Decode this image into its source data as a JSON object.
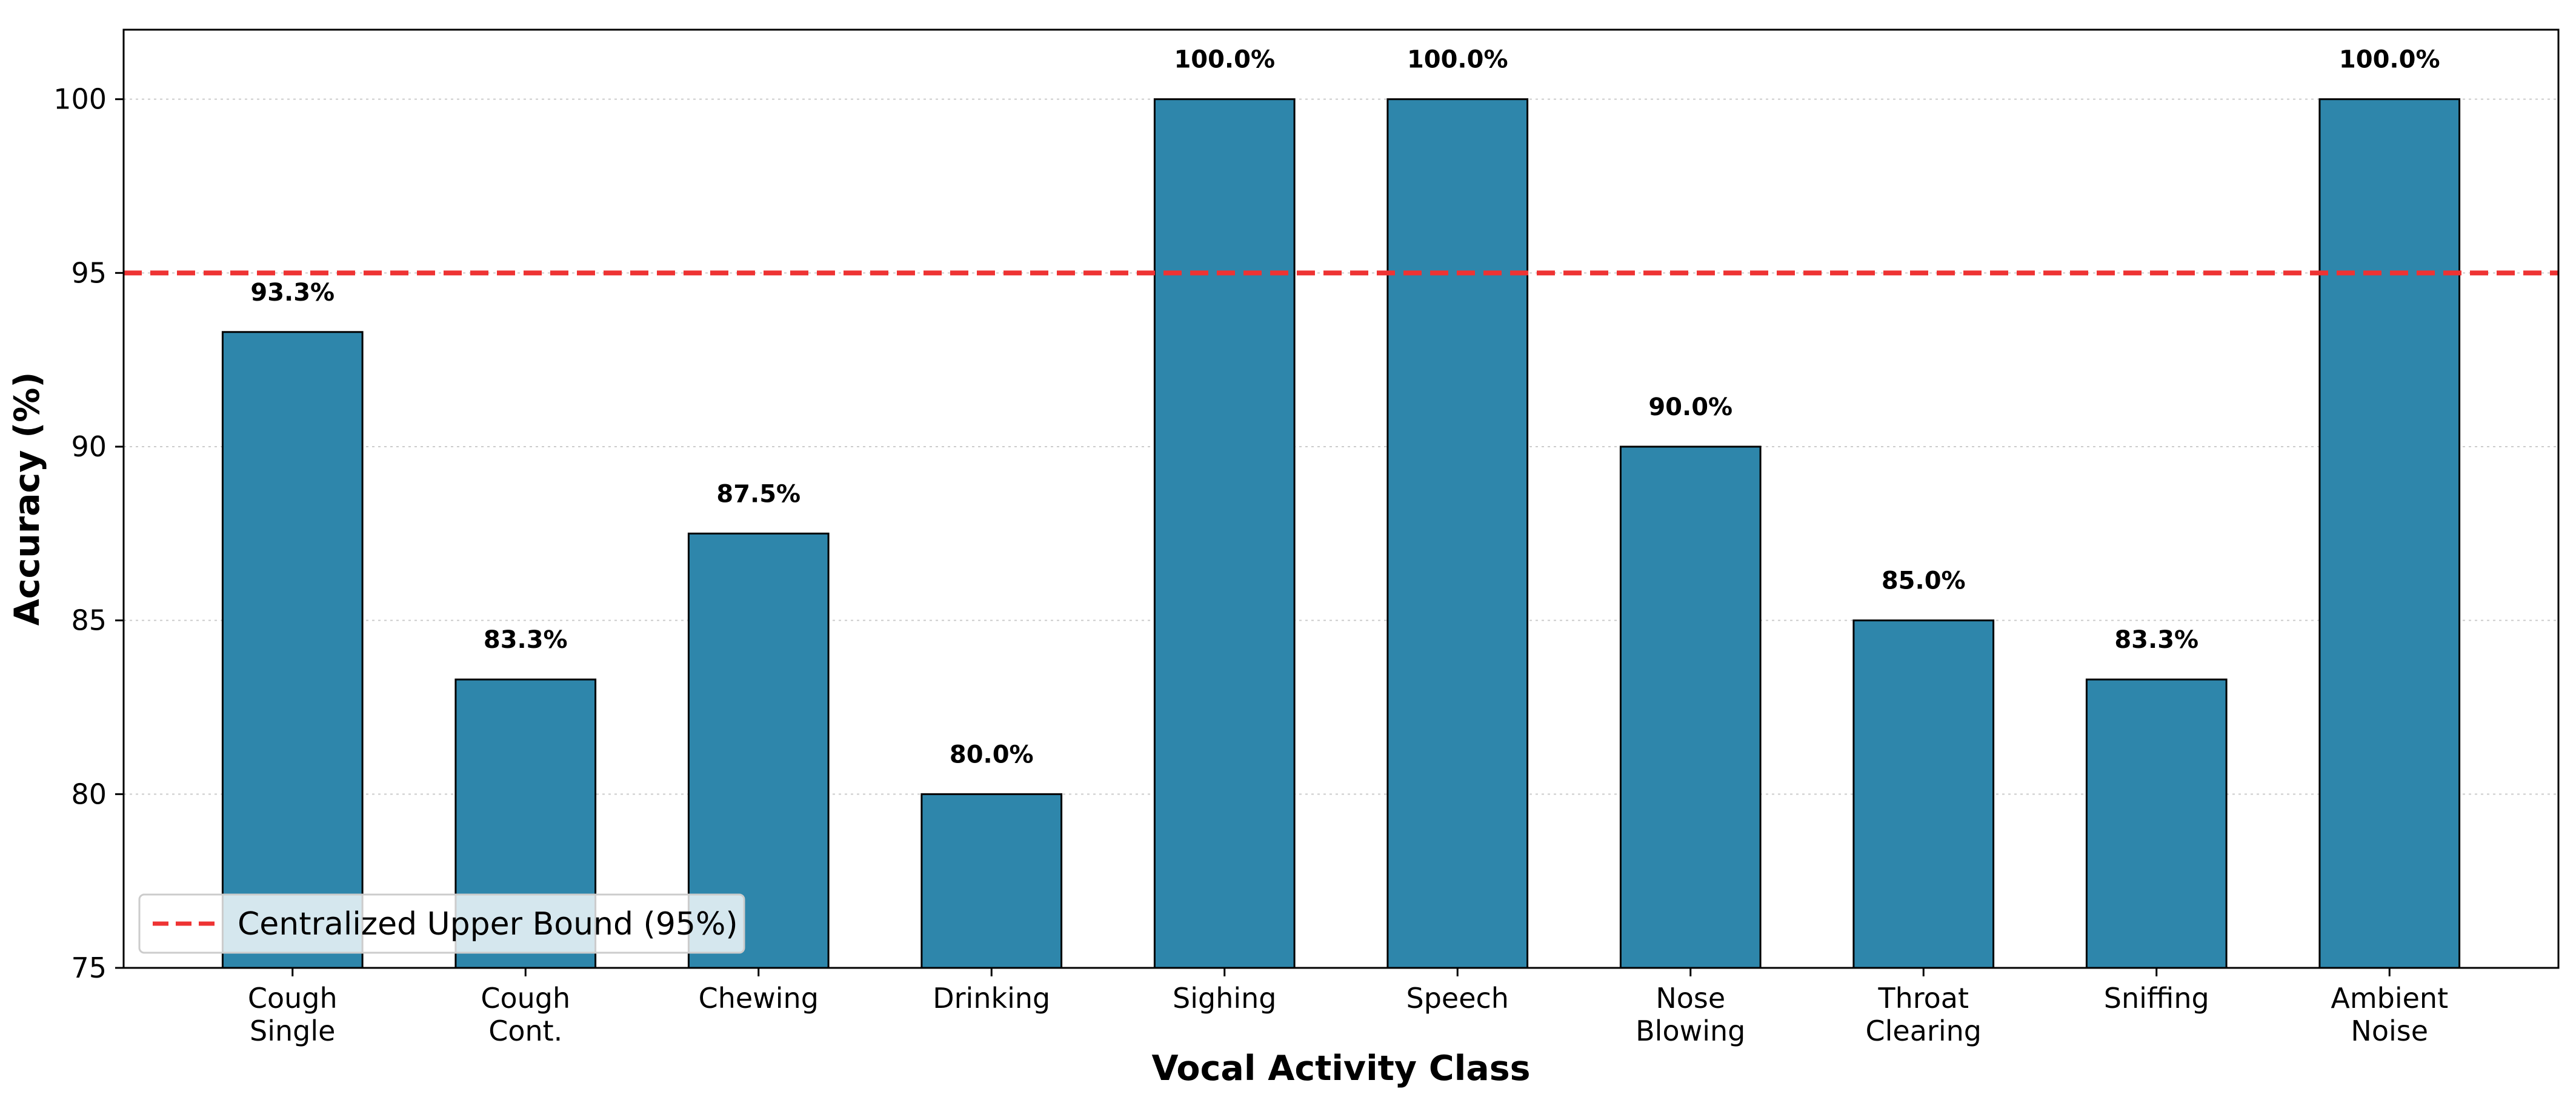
{
  "chart_data": {
    "type": "bar",
    "title": "",
    "xlabel": "Vocal Activity Class",
    "ylabel": "Accuracy (%)",
    "ylim": [
      75,
      102
    ],
    "yticks": [
      75,
      80,
      85,
      90,
      95,
      100
    ],
    "grid": "y-dotted",
    "categories": [
      [
        "Cough",
        "Single"
      ],
      [
        "Cough",
        "Cont."
      ],
      [
        "Chewing"
      ],
      [
        "Drinking"
      ],
      [
        "Sighing"
      ],
      [
        "Speech"
      ],
      [
        "Nose",
        "Blowing"
      ],
      [
        "Throat",
        "Clearing"
      ],
      [
        "Sniffing"
      ],
      [
        "Ambient",
        "Noise"
      ]
    ],
    "values": [
      93.3,
      83.3,
      87.5,
      80.0,
      100.0,
      100.0,
      90.0,
      85.0,
      83.3,
      100.0
    ],
    "value_labels": [
      "93.3%",
      "83.3%",
      "87.5%",
      "80.0%",
      "100.0%",
      "100.0%",
      "90.0%",
      "85.0%",
      "83.3%",
      "100.0%"
    ],
    "bar_color": "#2e86ab",
    "reference_line": {
      "value": 95,
      "label": "Centralized Upper Bound (95%)",
      "color": "#ee3333",
      "style": "dashed"
    },
    "legend_position": "lower-left"
  }
}
